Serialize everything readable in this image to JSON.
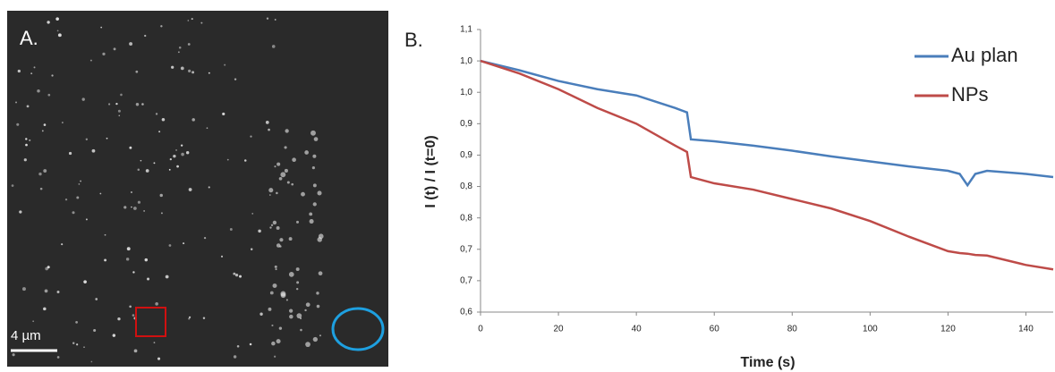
{
  "panel_a": {
    "label": "A.",
    "scale_bar": "4 µm"
  },
  "chart_data": {
    "type": "line",
    "panel_label": "B.",
    "x_label": "Time (s)",
    "y_label": "I (t) / I (t=0)",
    "x": [
      0,
      10,
      20,
      30,
      40,
      50,
      53,
      54,
      60,
      70,
      80,
      90,
      100,
      110,
      120,
      123,
      125,
      127,
      130,
      140,
      147
    ],
    "series": [
      {
        "name": "Au plan",
        "color": "#4a7ebb",
        "values": [
          1.0,
          0.985,
          0.968,
          0.955,
          0.945,
          0.925,
          0.918,
          0.875,
          0.872,
          0.865,
          0.857,
          0.848,
          0.84,
          0.832,
          0.825,
          0.82,
          0.802,
          0.82,
          0.825,
          0.82,
          0.815
        ]
      },
      {
        "name": "NPs",
        "color": "#be4b48",
        "values": [
          1.0,
          0.98,
          0.955,
          0.925,
          0.9,
          0.865,
          0.855,
          0.815,
          0.805,
          0.795,
          0.78,
          0.765,
          0.745,
          0.72,
          0.697,
          0.694,
          0.693,
          0.691,
          0.69,
          0.675,
          0.668
        ]
      }
    ],
    "xlim": [
      0,
      147
    ],
    "xticks": [
      0,
      20,
      40,
      60,
      80,
      100,
      120,
      140
    ],
    "ylim": [
      0.6,
      1.05
    ],
    "yticks": [
      {
        "value": 0.6,
        "label": "0,6"
      },
      {
        "value": 0.65,
        "label": "0,7"
      },
      {
        "value": 0.7,
        "label": "0,7"
      },
      {
        "value": 0.75,
        "label": "0,8"
      },
      {
        "value": 0.8,
        "label": "0,8"
      },
      {
        "value": 0.85,
        "label": "0,9"
      },
      {
        "value": 0.9,
        "label": "0,9"
      },
      {
        "value": 0.95,
        "label": "1,0"
      },
      {
        "value": 1.0,
        "label": "1,0"
      },
      {
        "value": 1.05,
        "label": "1,1"
      }
    ],
    "grid": false,
    "legend": "upper right"
  }
}
